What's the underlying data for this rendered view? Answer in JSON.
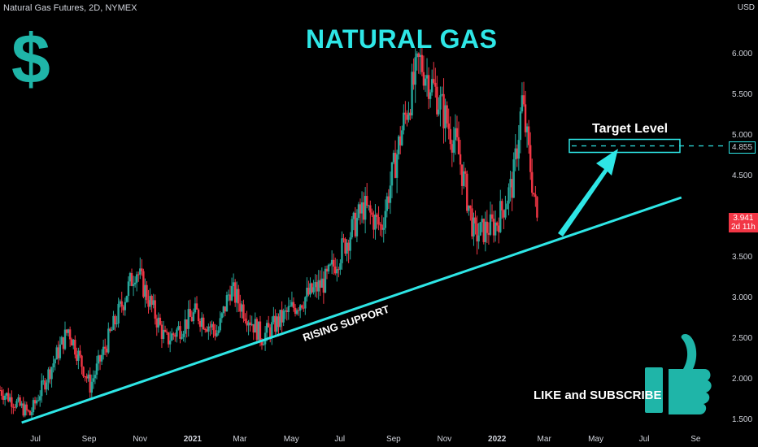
{
  "header": {
    "symbol": "Natural Gas Futures, 2D, NYMEX",
    "currency": "USD"
  },
  "annotations": {
    "title": "NATURAL GAS",
    "dollar": "$",
    "target_label": "Target Level",
    "support_label": "RISING SUPPORT",
    "like_label": "LIKE and SUBSCRIBE",
    "thumbs_icon": "thumbs-up-icon"
  },
  "price_labels": {
    "target": "4.855",
    "last_price": "3.941",
    "countdown": "2d 11h"
  },
  "colors": {
    "up": "#26a69a",
    "down": "#f23645",
    "accent": "#2ee6e6",
    "dollar": "#1fb5a8",
    "thumb": "#1fb5a8"
  },
  "chart_data": {
    "type": "candlestick",
    "xlabel": "",
    "ylabel": "",
    "ylim": [
      1.35,
      6.45
    ],
    "y_ticks": [
      "1.500",
      "2.000",
      "2.500",
      "3.000",
      "3.500",
      "4.000",
      "4.500",
      "5.000",
      "5.500",
      "6.000"
    ],
    "x_ticks": [
      "Jul",
      "Sep",
      "Nov",
      "2021",
      "Mar",
      "May",
      "Jul",
      "Sep",
      "Nov",
      "2022",
      "Mar",
      "May",
      "Jul",
      "Se"
    ],
    "series_keypoints": [
      {
        "date": "2020-05-20",
        "close": 1.85
      },
      {
        "date": "2020-06-25",
        "close": 1.55
      },
      {
        "date": "2020-08-10",
        "close": 2.6
      },
      {
        "date": "2020-09-05",
        "close": 1.9
      },
      {
        "date": "2020-10-30",
        "close": 3.35
      },
      {
        "date": "2020-12-05",
        "close": 2.45
      },
      {
        "date": "2021-01-10",
        "close": 2.8
      },
      {
        "date": "2021-02-05",
        "close": 2.55
      },
      {
        "date": "2021-02-20",
        "close": 3.1
      },
      {
        "date": "2021-03-30",
        "close": 2.5
      },
      {
        "date": "2021-05-10",
        "close": 2.9
      },
      {
        "date": "2021-06-15",
        "close": 3.2
      },
      {
        "date": "2021-07-30",
        "close": 4.1
      },
      {
        "date": "2021-08-20",
        "close": 3.85
      },
      {
        "date": "2021-09-15",
        "close": 5.1
      },
      {
        "date": "2021-10-05",
        "close": 5.9
      },
      {
        "date": "2021-10-25",
        "close": 5.5
      },
      {
        "date": "2021-11-20",
        "close": 4.8
      },
      {
        "date": "2021-12-10",
        "close": 3.75
      },
      {
        "date": "2022-01-05",
        "close": 3.9
      },
      {
        "date": "2022-01-25",
        "close": 4.4
      },
      {
        "date": "2022-02-05",
        "close": 5.4
      },
      {
        "date": "2022-02-23",
        "close": 3.94
      }
    ],
    "trendlines": [
      {
        "name": "rising-support",
        "from": {
          "date": "2020-06-15",
          "price": 1.45
        },
        "to": {
          "date": "2022-08-15",
          "price": 4.22
        }
      },
      {
        "name": "target-level",
        "price": 4.855
      }
    ],
    "grid": false,
    "legend": "none"
  }
}
